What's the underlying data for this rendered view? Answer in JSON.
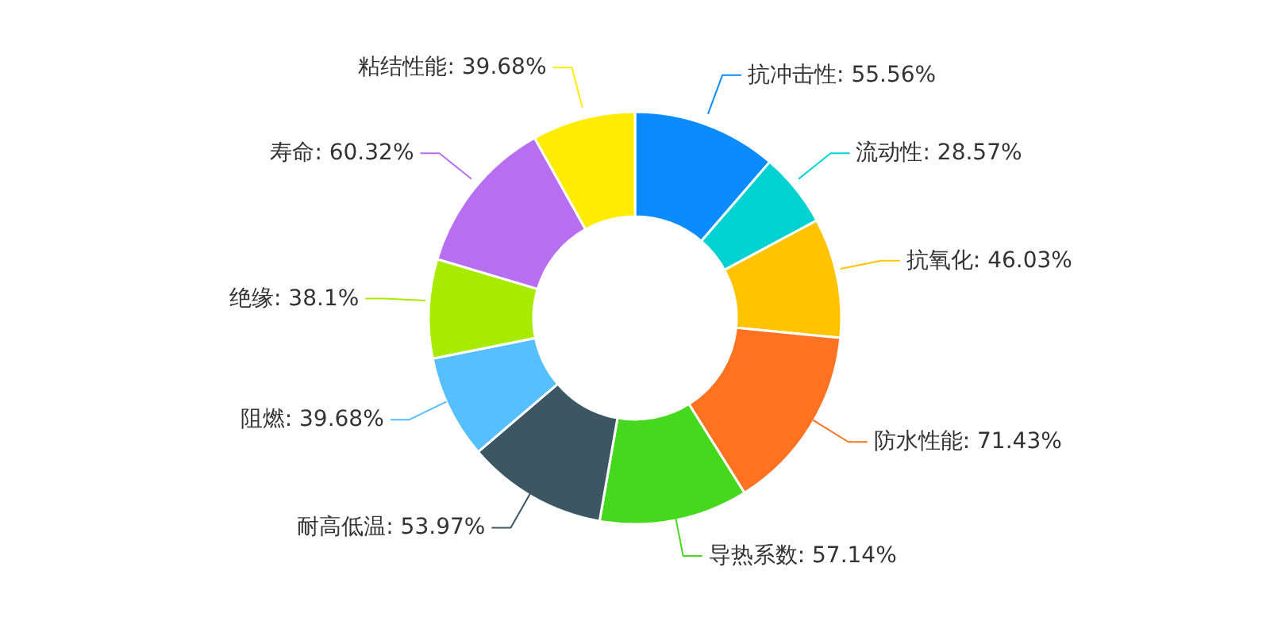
{
  "chart_data": {
    "type": "donut",
    "categories": [
      "抗冲击性",
      "流动性",
      "抗氧化",
      "防水性能",
      "导热系数",
      "耐高低温",
      "阻燃",
      "绝缘",
      "寿命",
      "粘结性能"
    ],
    "values": [
      55.56,
      28.57,
      46.03,
      71.43,
      57.14,
      53.97,
      39.68,
      38.1,
      60.32,
      39.68
    ],
    "value_labels": [
      "55.56%",
      "28.57%",
      "46.03%",
      "71.43%",
      "57.14%",
      "53.97%",
      "39.68%",
      "38.1%",
      "60.32%",
      "39.68%"
    ],
    "colors": [
      "#0a8cff",
      "#00d1d1",
      "#ffc300",
      "#ff7221",
      "#46d81c",
      "#3d5663",
      "#55bfff",
      "#a8eb00",
      "#b86ef0",
      "#ffec00"
    ]
  }
}
